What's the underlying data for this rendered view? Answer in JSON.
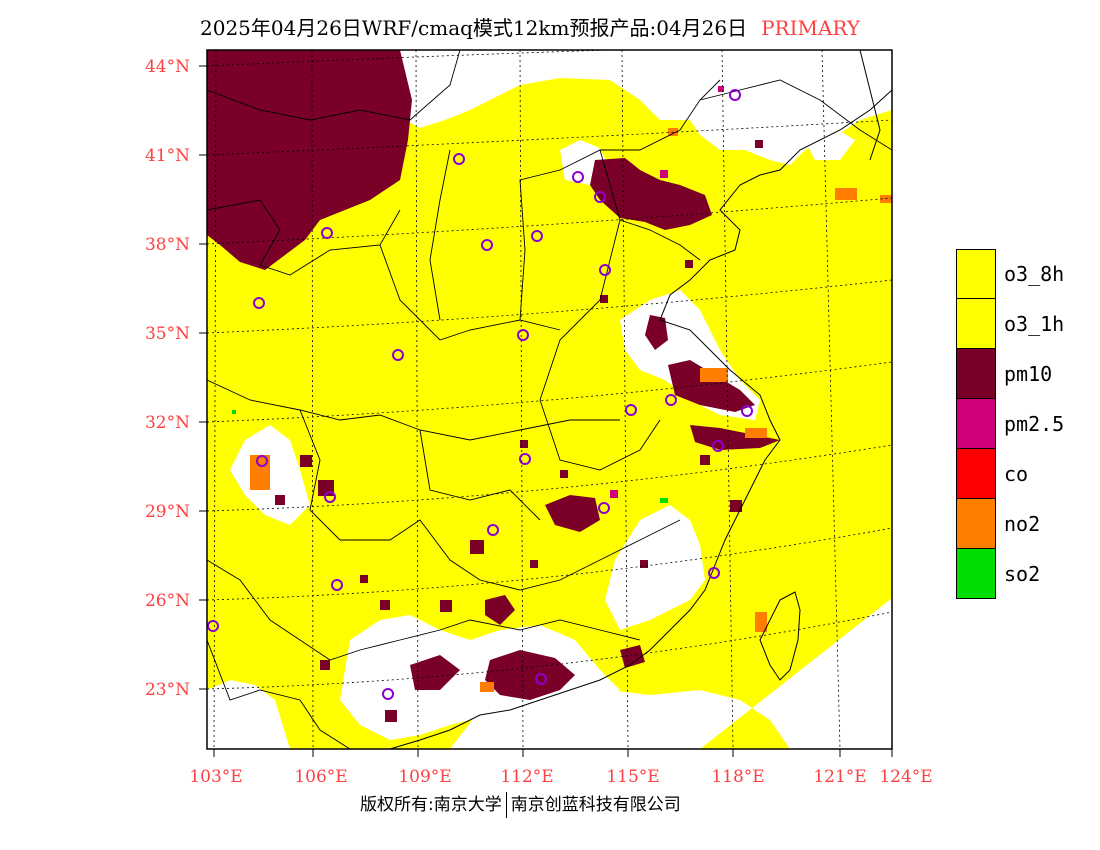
{
  "header": {
    "title": "2025年04月26日WRF/cmaq模式12km预报产品:04月26日",
    "tag": "PRIMARY"
  },
  "map": {
    "lat_labels": [
      "44°N",
      "41°N",
      "38°N",
      "35°N",
      "32°N",
      "29°N",
      "26°N",
      "23°N"
    ],
    "lon_labels": [
      "103°E",
      "106°E",
      "109°E",
      "112°E",
      "115°E",
      "118°E",
      "121°E",
      "124°E"
    ],
    "colors": {
      "o3": "#ffff00",
      "pm10": "#7a0028",
      "pm25": "#d0007a",
      "co": "#ff0000",
      "no2": "#ff7d00",
      "so2": "#00dd00",
      "clean": "#ffffff",
      "border": "#000000",
      "grid": "#000000",
      "station": "#8a00d0"
    }
  },
  "legend": [
    {
      "label": "o3_8h",
      "color": "#ffff00"
    },
    {
      "label": "o3_1h",
      "color": "#ffff00"
    },
    {
      "label": "pm10",
      "color": "#7a0028"
    },
    {
      "label": "pm2.5",
      "color": "#d0007a"
    },
    {
      "label": "co",
      "color": "#ff0000"
    },
    {
      "label": "no2",
      "color": "#ff7d00"
    },
    {
      "label": "so2",
      "color": "#00dd00"
    }
  ],
  "footer": {
    "copyright": "版权所有:南京大学",
    "company": "南京创蓝科技有限公司"
  }
}
